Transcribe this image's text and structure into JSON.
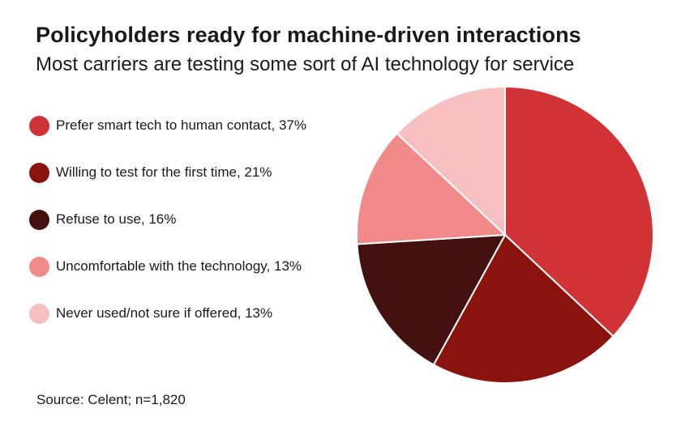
{
  "chart_data": {
    "type": "pie",
    "title": "Policyholders ready for machine-driven interactions",
    "subtitle": "Most carriers are testing some sort of AI technology for service",
    "slices": [
      {
        "label": "Prefer smart tech to human contact, 37%",
        "value": 37,
        "color": "#d03235"
      },
      {
        "label": "Willing to test for the first time, 21%",
        "value": 21,
        "color": "#8b130d"
      },
      {
        "label": "Refuse to use, 16%",
        "value": 16,
        "color": "#431210"
      },
      {
        "label": "Uncomfortable with the technology, 13%",
        "value": 13,
        "color": "#f28a89"
      },
      {
        "label": "Never used/not sure if offered, 13%",
        "value": 13,
        "color": "#f6c0c1"
      }
    ],
    "legend_position": "left",
    "source": "Source: Celent; n=1,820"
  }
}
